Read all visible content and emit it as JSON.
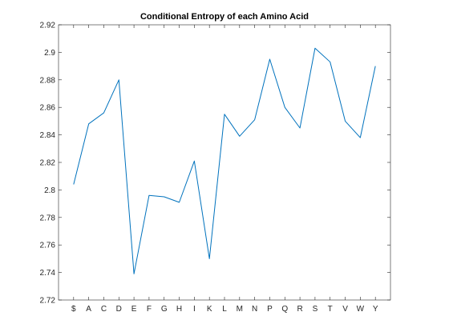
{
  "chart_data": {
    "type": "line",
    "title": "Conditional Entropy of each Amino Acid",
    "xlabel": "",
    "ylabel": "",
    "categories": [
      "$",
      "A",
      "C",
      "D",
      "E",
      "F",
      "G",
      "H",
      "I",
      "K",
      "L",
      "M",
      "N",
      "P",
      "Q",
      "R",
      "S",
      "T",
      "V",
      "W",
      "Y"
    ],
    "x_range": [
      0,
      22
    ],
    "ylim": [
      2.72,
      2.92
    ],
    "yticks": [
      2.72,
      2.74,
      2.76,
      2.78,
      2.8,
      2.82,
      2.84,
      2.86,
      2.88,
      2.9,
      2.92
    ],
    "ytick_labels": [
      "2.72",
      "2.74",
      "2.76",
      "2.78",
      "2.8",
      "2.82",
      "2.84",
      "2.86",
      "2.88",
      "2.9",
      "2.92"
    ],
    "grid": false,
    "line_color": "#0072BD",
    "series": [
      {
        "values": [
          2.804,
          2.848,
          2.856,
          2.88,
          2.739,
          2.796,
          2.795,
          2.791,
          2.821,
          2.75,
          2.855,
          2.839,
          2.851,
          2.895,
          2.86,
          2.845,
          2.903,
          2.893,
          2.85,
          2.838,
          2.89
        ]
      }
    ]
  }
}
